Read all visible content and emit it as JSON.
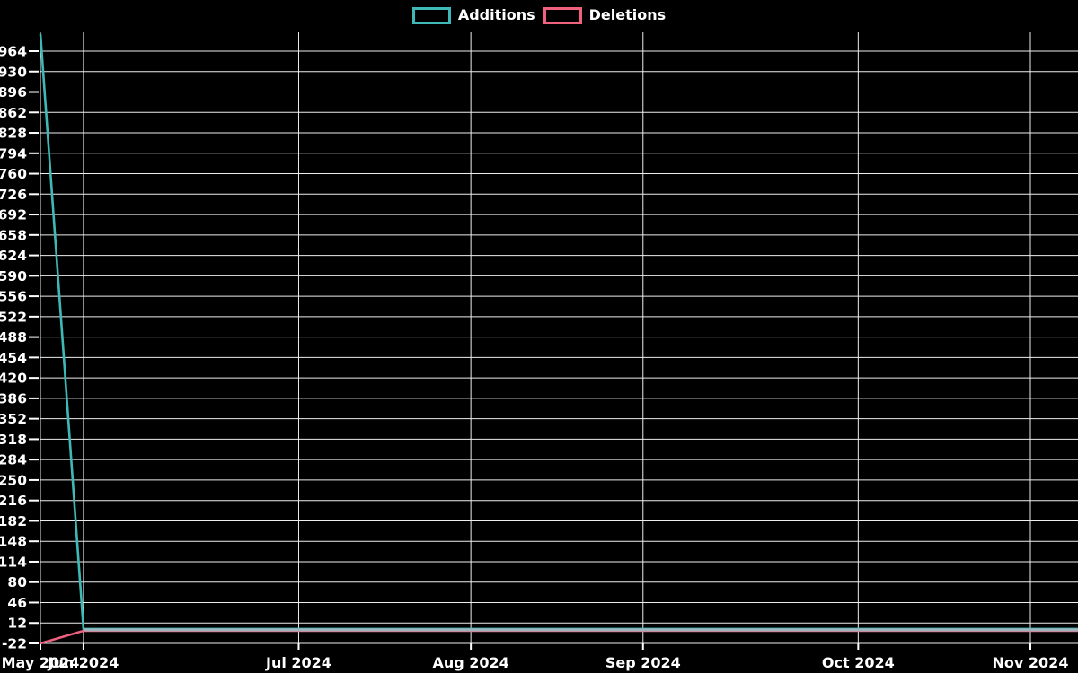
{
  "legend": {
    "items": [
      {
        "label": "Additions",
        "color": "#3fb8b8"
      },
      {
        "label": "Deletions",
        "color": "#f0617e"
      }
    ]
  },
  "chart_data": {
    "type": "line",
    "title": "",
    "xlabel": "",
    "ylabel": "",
    "background_color": "#000000",
    "grid": true,
    "grid_color": "#eeeeee",
    "text_color": "#ffffff",
    "legend_position": "top-center",
    "x_axis": {
      "unit": "weeks",
      "range_weeks": [
        0,
        24.106
      ],
      "ticks": [
        {
          "label": "May 2024",
          "week": 0
        },
        {
          "label": "Jun 2024",
          "week": 1
        },
        {
          "label": "Jul 2024",
          "week": 6
        },
        {
          "label": "Aug 2024",
          "week": 10
        },
        {
          "label": "Sep 2024",
          "week": 14
        },
        {
          "label": "Oct 2024",
          "week": 19
        },
        {
          "label": "Nov 2024",
          "week": 23
        }
      ]
    },
    "y_axis": {
      "range": [
        -22,
        998
      ],
      "tick_step": 34,
      "ticks": [
        964,
        930,
        896,
        862,
        828,
        794,
        760,
        726,
        692,
        658,
        624,
        590,
        556,
        522,
        488,
        454,
        420,
        386,
        352,
        318,
        284,
        250,
        216,
        182,
        148,
        114,
        80,
        46,
        12,
        -22
      ]
    },
    "series": [
      {
        "name": "Deletions",
        "color": "#f0617e",
        "points": [
          [
            0,
            -22
          ],
          [
            1,
            -1
          ],
          [
            24.106,
            -1
          ]
        ]
      },
      {
        "name": "Additions",
        "color": "#3fb8b8",
        "points": [
          [
            0,
            993
          ],
          [
            1,
            2
          ],
          [
            24.106,
            2
          ]
        ]
      }
    ],
    "overlap_segment": {
      "note": "both series coincide near zero after Jun 2024; rendered as blended gray line",
      "from_week": 1,
      "to_week": 24.106,
      "value": 0.5,
      "color": "#9fb4bc"
    }
  }
}
